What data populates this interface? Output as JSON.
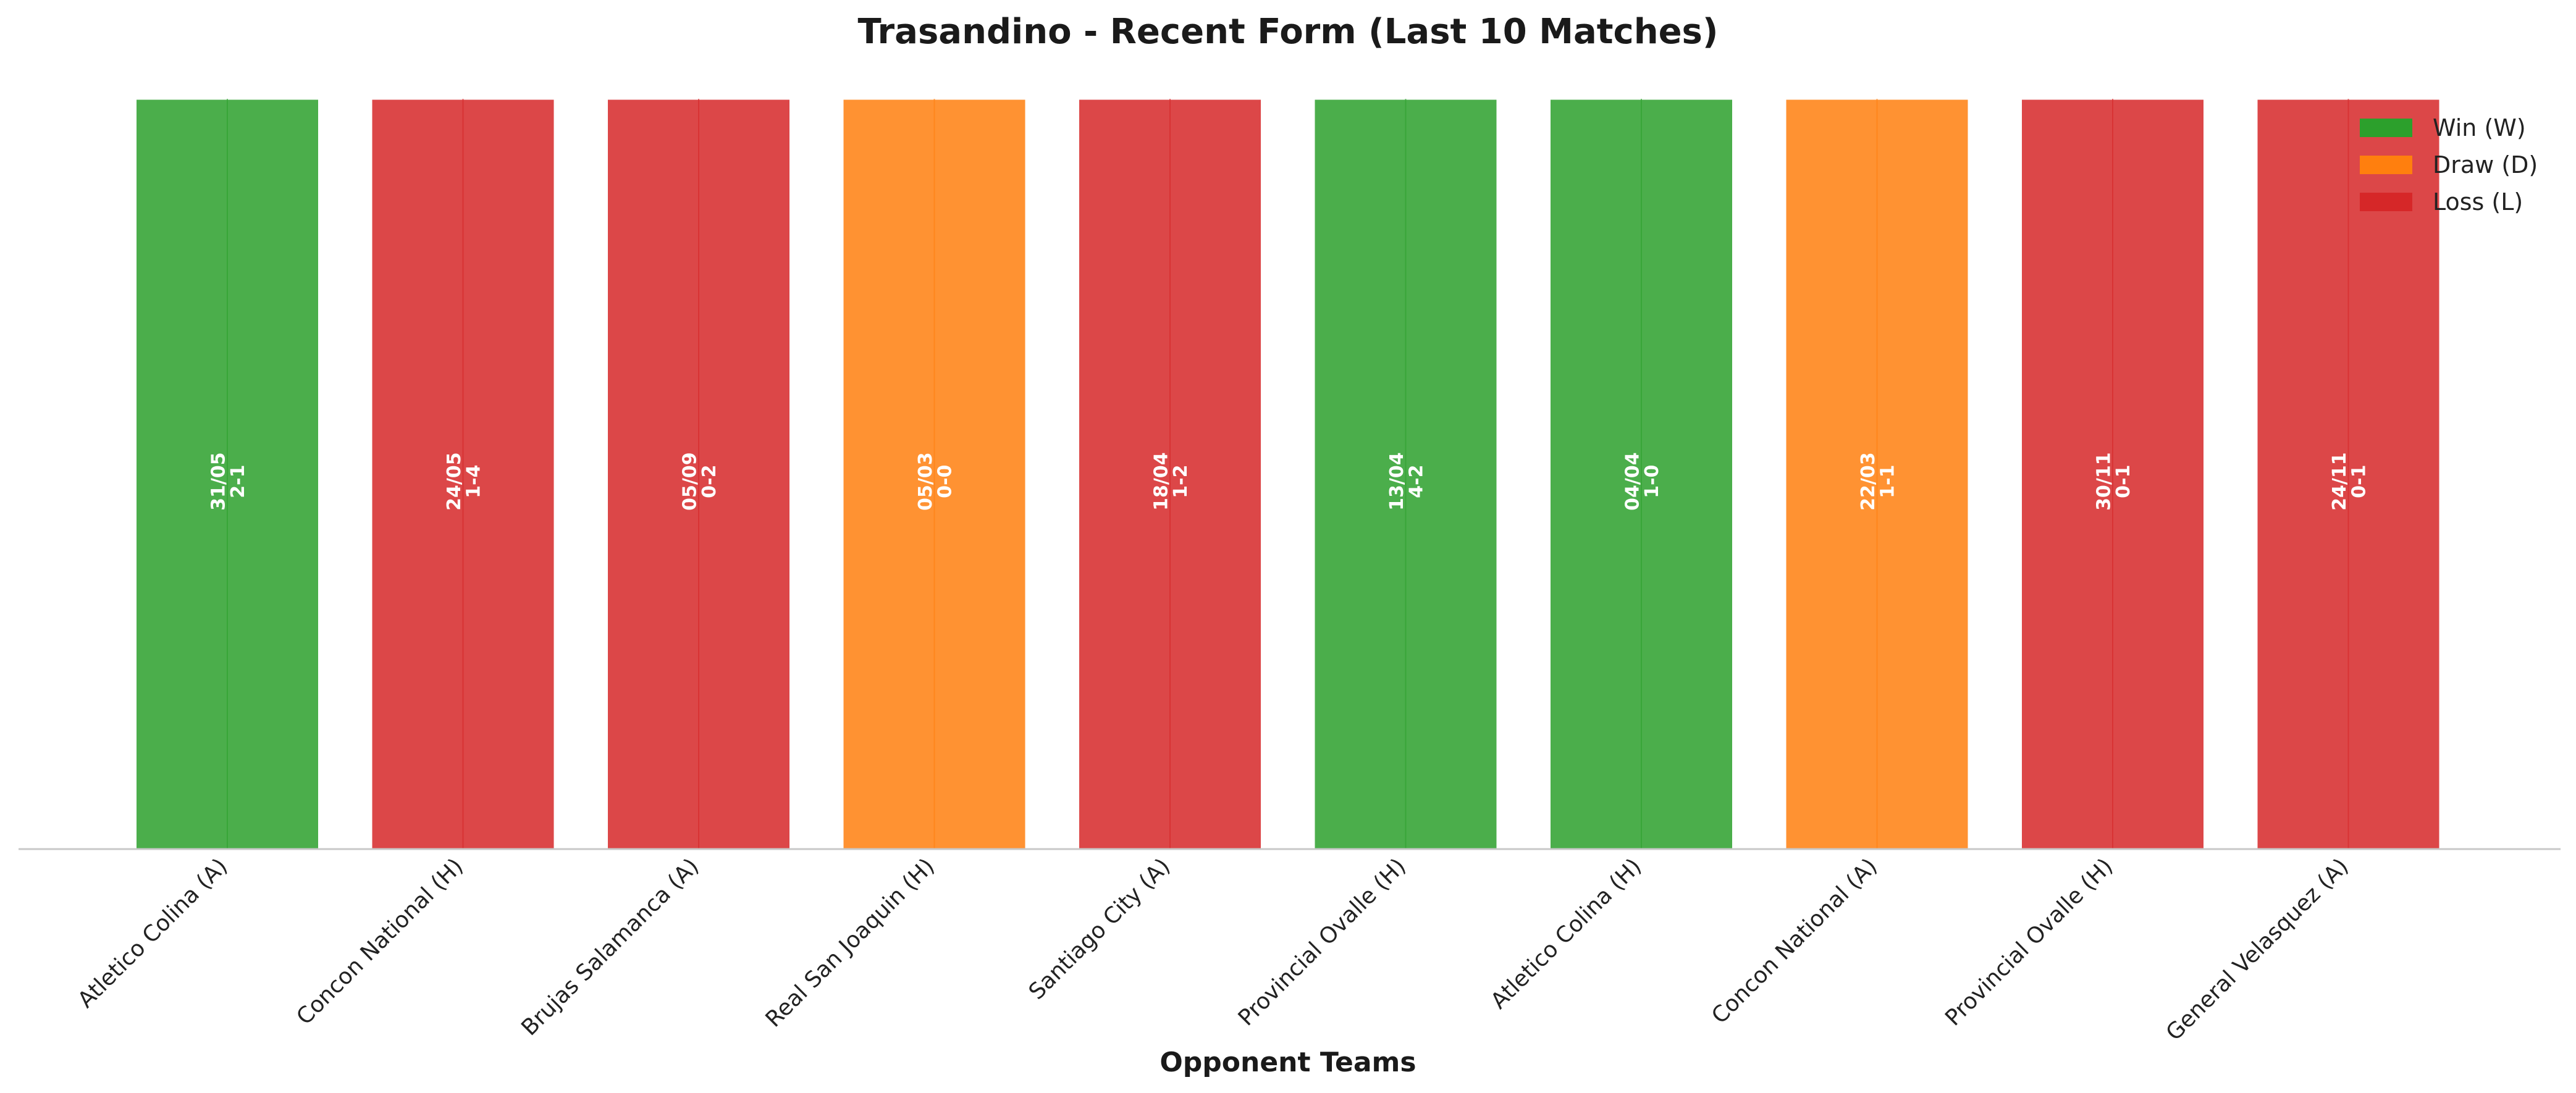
{
  "chart_data": {
    "type": "bar",
    "title": "Trasandino - Recent Form (Last 10 Matches)",
    "xlabel": "Opponent Teams",
    "ylabel": "",
    "ylim": [
      0,
      1
    ],
    "grid": false,
    "legend": {
      "placement": "top-right",
      "entries": [
        {
          "key": "W",
          "label": "Win (W)",
          "color": "#2ca02c"
        },
        {
          "key": "D",
          "label": "Draw (D)",
          "color": "#ff7f0e"
        },
        {
          "key": "L",
          "label": "Loss (L)",
          "color": "#d62728"
        }
      ]
    },
    "categories": [
      "Atletico Colina (A)",
      "Concon National (H)",
      "Brujas Salamanca (A)",
      "Real San Joaquin (H)",
      "Santiago City (A)",
      "Provincial Ovalle (H)",
      "Atletico Colina (H)",
      "Concon National (A)",
      "Provincial Ovalle (H)",
      "General Velasquez (A)"
    ],
    "values": [
      1,
      1,
      1,
      1,
      1,
      1,
      1,
      1,
      1,
      1
    ],
    "results": [
      "W",
      "L",
      "L",
      "D",
      "L",
      "W",
      "W",
      "D",
      "L",
      "L"
    ],
    "dates": [
      "31/05",
      "24/05",
      "05/09",
      "05/03",
      "18/04",
      "13/04",
      "04/04",
      "22/03",
      "30/11",
      "24/11"
    ],
    "scores": [
      "2-1",
      "1-4",
      "0-2",
      "0-0",
      "1-2",
      "4-2",
      "1-0",
      "1-1",
      "0-1",
      "0-1"
    ]
  }
}
